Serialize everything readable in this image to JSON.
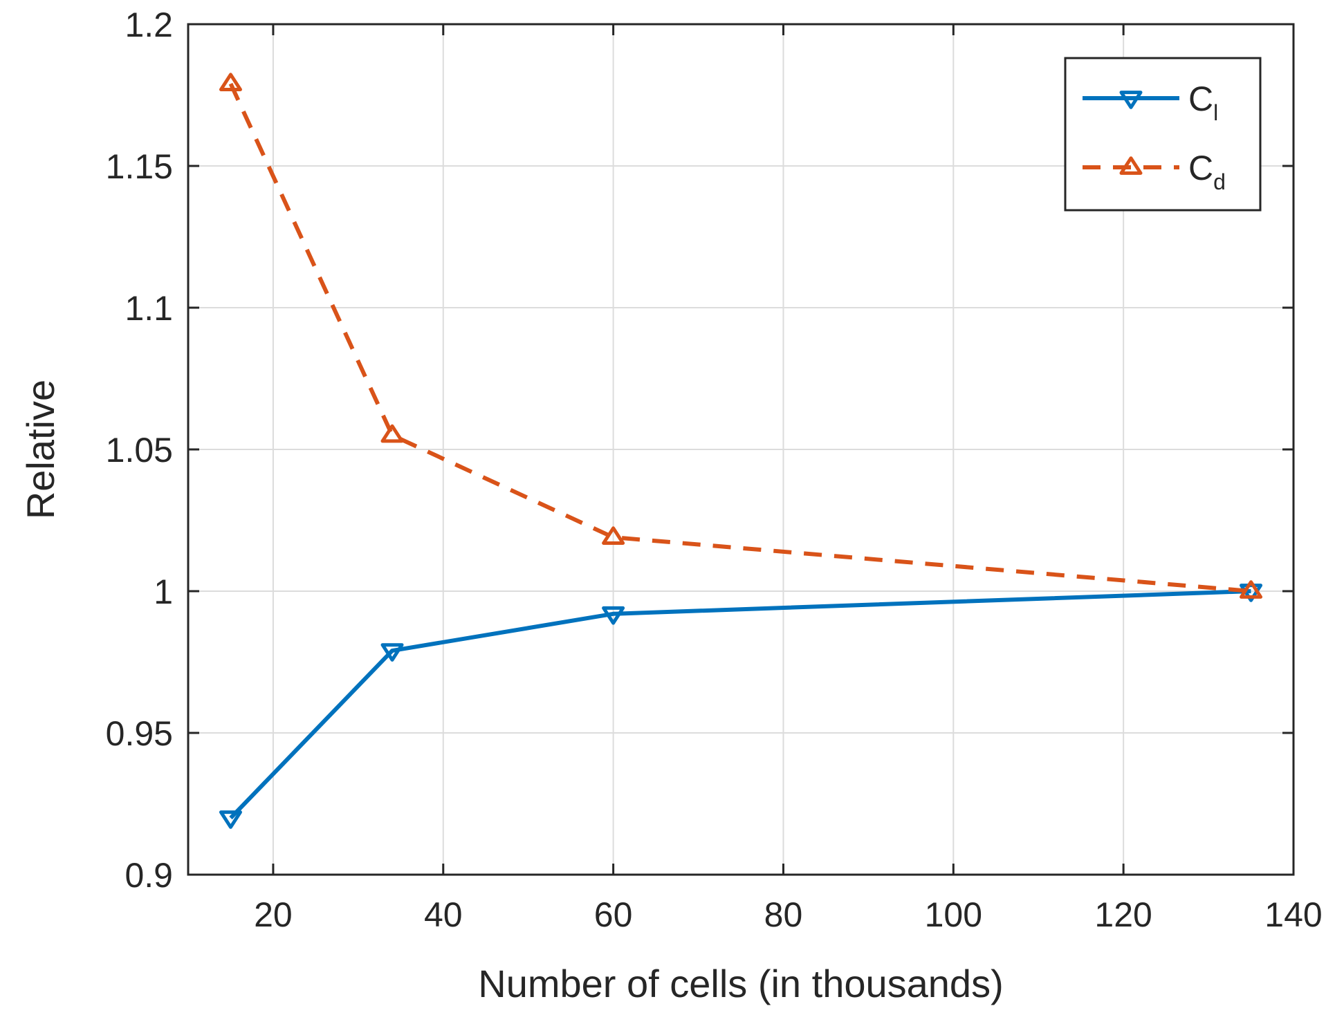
{
  "chart_data": {
    "type": "line",
    "title": "",
    "xlabel": "Number of cells (in thousands)",
    "ylabel": "Relative",
    "xlim": [
      10,
      140
    ],
    "ylim": [
      0.9,
      1.2
    ],
    "xticks": [
      20,
      40,
      60,
      80,
      100,
      120,
      140
    ],
    "yticks": [
      0.9,
      0.95,
      1,
      1.05,
      1.1,
      1.15,
      1.2
    ],
    "xtick_labels": [
      "20",
      "40",
      "60",
      "80",
      "100",
      "120",
      "140"
    ],
    "ytick_labels": [
      "0.9",
      "0.95",
      "1",
      "1.05",
      "1.1",
      "1.15",
      "1.2"
    ],
    "grid": true,
    "legend_position": "top-right",
    "x": [
      15,
      34,
      60,
      135
    ],
    "series": [
      {
        "name": "C_l",
        "label_main": "C",
        "label_sub": "l",
        "values": [
          0.92,
          0.979,
          0.992,
          1.0
        ],
        "color": "#0072BD",
        "line_style": "solid",
        "marker": "triangle-down"
      },
      {
        "name": "C_d",
        "label_main": "C",
        "label_sub": "d",
        "values": [
          1.179,
          1.055,
          1.019,
          1.0
        ],
        "color": "#D95319",
        "line_style": "dashed",
        "marker": "triangle-up"
      }
    ]
  }
}
